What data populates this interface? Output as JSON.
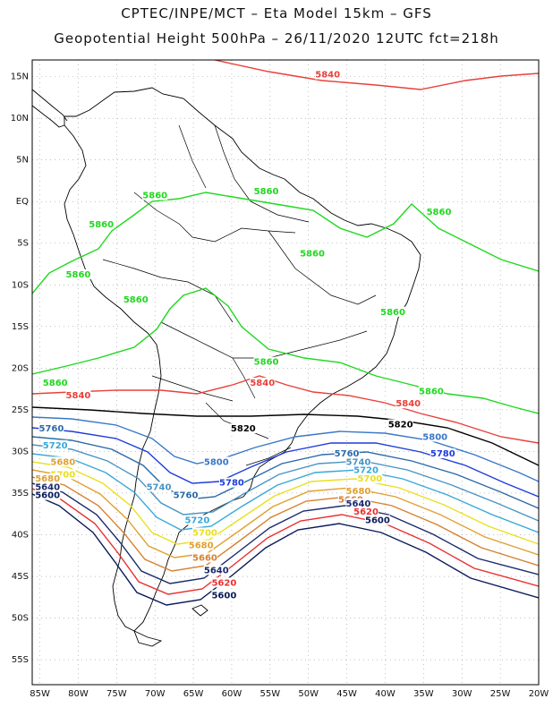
{
  "header": {
    "title_line1": "CPTEC/INPE/MCT –  Eta Model 15km – GFS",
    "title_line2": "Geopotential Height 500hPa – 26/11/2020 12UTC fct=218h"
  },
  "map": {
    "lon_labels": [
      "85W",
      "80W",
      "75W",
      "70W",
      "65W",
      "60W",
      "55W",
      "50W",
      "45W",
      "40W",
      "35W",
      "30W",
      "25W",
      "20W"
    ],
    "lat_labels": [
      "15N",
      "10N",
      "5N",
      "EQ",
      "5S",
      "10S",
      "15S",
      "20S",
      "25S",
      "30S",
      "35S",
      "40S",
      "45S",
      "50S",
      "55S"
    ],
    "lon_range": [
      -86,
      -20
    ],
    "lat_range": [
      17,
      -58
    ],
    "grid": "dotted"
  },
  "contours": [
    {
      "value": 5860,
      "color": "#1fd81f"
    },
    {
      "value": 5840,
      "color": "#e8403a"
    },
    {
      "value": 5820,
      "color": "#000000"
    },
    {
      "value": 5800,
      "color": "#3a78c8"
    },
    {
      "value": 5780,
      "color": "#1e3cdc"
    },
    {
      "value": 5760,
      "color": "#2c6aa8"
    },
    {
      "value": 5740,
      "color": "#4a94c4"
    },
    {
      "value": 5720,
      "color": "#38a8d8"
    },
    {
      "value": 5700,
      "color": "#e8e020"
    },
    {
      "value": 5680,
      "color": "#e0a030"
    },
    {
      "value": 5660,
      "color": "#d88030"
    },
    {
      "value": 5640,
      "color": "#1a2a6a"
    },
    {
      "value": 5620,
      "color": "#e83030"
    },
    {
      "value": 5600,
      "color": "#0a1a5a"
    }
  ],
  "contour_labels": [
    {
      "text": "5840",
      "color": "#e8403a",
      "lon": -47.5,
      "lat": 15.0
    },
    {
      "text": "5860",
      "color": "#1fd81f",
      "lon": -70.0,
      "lat": 0.5
    },
    {
      "text": "5860",
      "color": "#1fd81f",
      "lon": -55.5,
      "lat": 1.0
    },
    {
      "text": "5860",
      "color": "#1fd81f",
      "lon": -33.0,
      "lat": -1.5
    },
    {
      "text": "5860",
      "color": "#1fd81f",
      "lon": -77.0,
      "lat": -3.0
    },
    {
      "text": "5860",
      "color": "#1fd81f",
      "lon": -49.5,
      "lat": -6.5
    },
    {
      "text": "5860",
      "color": "#1fd81f",
      "lon": -80.0,
      "lat": -9.0
    },
    {
      "text": "5860",
      "color": "#1fd81f",
      "lon": -72.5,
      "lat": -12.0
    },
    {
      "text": "5860",
      "color": "#1fd81f",
      "lon": -39.0,
      "lat": -13.5
    },
    {
      "text": "5860",
      "color": "#1fd81f",
      "lon": -55.5,
      "lat": -19.5
    },
    {
      "text": "5860",
      "color": "#1fd81f",
      "lon": -83.0,
      "lat": -22.0
    },
    {
      "text": "5860",
      "color": "#1fd81f",
      "lon": -34.0,
      "lat": -23.0
    },
    {
      "text": "5840",
      "color": "#e8403a",
      "lon": -80.0,
      "lat": -23.5
    },
    {
      "text": "5840",
      "color": "#e8403a",
      "lon": -56.0,
      "lat": -22.0
    },
    {
      "text": "5840",
      "color": "#e8403a",
      "lon": -37.0,
      "lat": -24.5
    },
    {
      "text": "5820",
      "color": "#000000",
      "lon": -58.5,
      "lat": -27.5
    },
    {
      "text": "5820",
      "color": "#000000",
      "lon": -38.0,
      "lat": -27.0
    },
    {
      "text": "5800",
      "color": "#3a78c8",
      "lon": -33.5,
      "lat": -28.5
    },
    {
      "text": "5800",
      "color": "#3a78c8",
      "lon": -62.0,
      "lat": -31.5
    },
    {
      "text": "5780",
      "color": "#1e3cdc",
      "lon": -32.5,
      "lat": -30.5
    },
    {
      "text": "5780",
      "color": "#1e3cdc",
      "lon": -60.0,
      "lat": -34.0
    },
    {
      "text": "5760",
      "color": "#2c6aa8",
      "lon": -83.5,
      "lat": -27.5
    },
    {
      "text": "5760",
      "color": "#2c6aa8",
      "lon": -45.0,
      "lat": -30.5
    },
    {
      "text": "5760",
      "color": "#2c6aa8",
      "lon": -66.0,
      "lat": -35.5
    },
    {
      "text": "5740",
      "color": "#4a94c4",
      "lon": -69.5,
      "lat": -34.5
    },
    {
      "text": "5740",
      "color": "#4a94c4",
      "lon": -43.5,
      "lat": -31.5
    },
    {
      "text": "5720",
      "color": "#38a8d8",
      "lon": -83.0,
      "lat": -29.5
    },
    {
      "text": "5720",
      "color": "#38a8d8",
      "lon": -42.5,
      "lat": -32.5
    },
    {
      "text": "5720",
      "color": "#38a8d8",
      "lon": -64.5,
      "lat": -38.5
    },
    {
      "text": "5700",
      "color": "#e8e020",
      "lon": -82.0,
      "lat": -33.0
    },
    {
      "text": "5700",
      "color": "#e8e020",
      "lon": -63.5,
      "lat": -40.0
    },
    {
      "text": "5700",
      "color": "#e8e020",
      "lon": -42.0,
      "lat": -33.5
    },
    {
      "text": "5680",
      "color": "#e0a030",
      "lon": -82.0,
      "lat": -31.5
    },
    {
      "text": "5680",
      "color": "#e0a030",
      "lon": -64.0,
      "lat": -41.5
    },
    {
      "text": "5680",
      "color": "#e0a030",
      "lon": -43.5,
      "lat": -35.0
    },
    {
      "text": "5660",
      "color": "#d88030",
      "lon": -63.5,
      "lat": -43.0
    },
    {
      "text": "5660",
      "color": "#d88030",
      "lon": -44.5,
      "lat": -36.0
    },
    {
      "text": "5640",
      "color": "#1a2a6a",
      "lon": -62.0,
      "lat": -44.5
    },
    {
      "text": "5640",
      "color": "#1a2a6a",
      "lon": -43.5,
      "lat": -36.5
    },
    {
      "text": "5620",
      "color": "#e83030",
      "lon": -61.0,
      "lat": -46.0
    },
    {
      "text": "5620",
      "color": "#e83030",
      "lon": -42.5,
      "lat": -37.5
    },
    {
      "text": "5600",
      "color": "#0a1a5a",
      "lon": -61.0,
      "lat": -47.5
    },
    {
      "text": "5600",
      "color": "#0a1a5a",
      "lon": -41.0,
      "lat": -38.5
    },
    {
      "text": "5680",
      "color": "#e0a030",
      "lon": -84.0,
      "lat": -33.5
    },
    {
      "text": "5640",
      "color": "#1a2a6a",
      "lon": -84.0,
      "lat": -34.5
    },
    {
      "text": "5600",
      "color": "#0a1a5a",
      "lon": -84.0,
      "lat": -35.5
    }
  ]
}
